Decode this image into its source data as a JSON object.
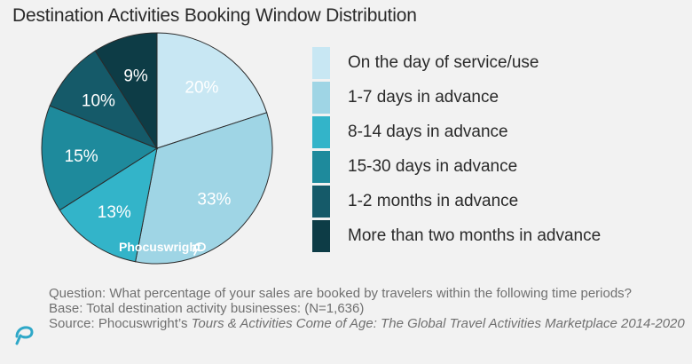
{
  "chart_data": {
    "type": "pie",
    "title": "Destination Activities Booking Window Distribution",
    "slices": [
      {
        "label": "On the day of service/use",
        "value": 20,
        "display": "20%",
        "color": "#c8e7f3"
      },
      {
        "label": "1-7 days in advance",
        "value": 33,
        "display": "33%",
        "color": "#9fd5e5"
      },
      {
        "label": "8-14 days in advance",
        "value": 13,
        "display": "13%",
        "color": "#33b4c9"
      },
      {
        "label": "15-30 days in advance",
        "value": 15,
        "display": "15%",
        "color": "#1e8a9c"
      },
      {
        "label": "1-2 months in advance",
        "value": 10,
        "display": "10%",
        "color": "#155a69"
      },
      {
        "label": "More than two months in advance",
        "value": 9,
        "display": "9%",
        "color": "#0d3c46"
      }
    ],
    "legend_position": "right"
  },
  "watermark": "Phocuswright",
  "footer": {
    "question": "Question: What percentage of your sales are booked by travelers within the following time periods?",
    "base": "Base: Total destination activity businesses:  (N=1,636)",
    "source_prefix": "Source: Phocuswright’s ",
    "source_title": "Tours & Activities Come of Age: The Global Travel Activities Marketplace 2014-2020"
  },
  "logo_icon": "phocuswright-logo-icon",
  "label_colors": {
    "light": "#ffffff",
    "dark": "#0d3c46"
  }
}
